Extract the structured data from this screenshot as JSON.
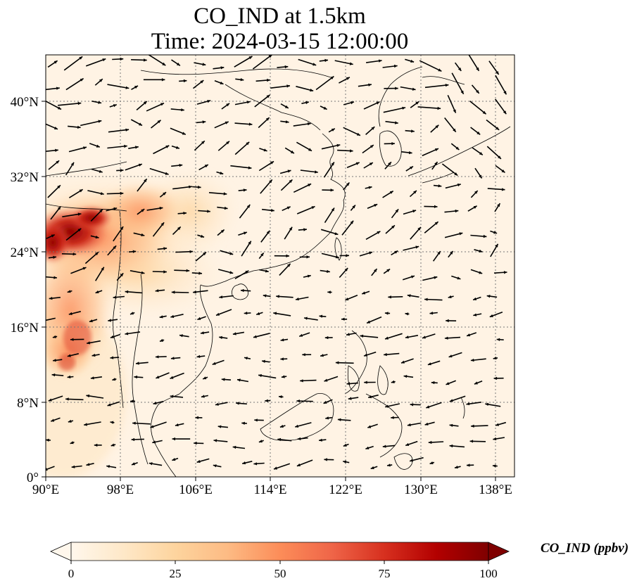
{
  "title": {
    "line1": "CO_IND at 1.5km",
    "line2": "Time: 2024-03-15 12:00:00"
  },
  "map": {
    "projection": "PlateCarree",
    "lon_range": [
      90,
      140
    ],
    "lat_range": [
      0,
      45
    ],
    "gridlines": "dotted",
    "lon_ticks": [
      "90°E",
      "98°E",
      "106°E",
      "114°E",
      "122°E",
      "130°E",
      "138°E"
    ],
    "lat_ticks": [
      "0°",
      "8°N",
      "16°N",
      "24°N",
      "32°N",
      "40°N"
    ],
    "field": "CO_IND concentration, highest over Myanmar / Yunnan / NE India (≈100 ppbv), low elsewhere",
    "vectors": "wind arrows, westerly over continent, easterly over tropical ocean"
  },
  "colorbar": {
    "label": "CO_IND (ppbv)",
    "ticks": [
      "0",
      "25",
      "50",
      "75",
      "100"
    ],
    "range": [
      0,
      100
    ],
    "colors": [
      "#fff7ec",
      "#fee8c8",
      "#fdd49e",
      "#fdbb84",
      "#fc8d59",
      "#ef6548",
      "#d7301f",
      "#b30000",
      "#7f0000"
    ]
  }
}
